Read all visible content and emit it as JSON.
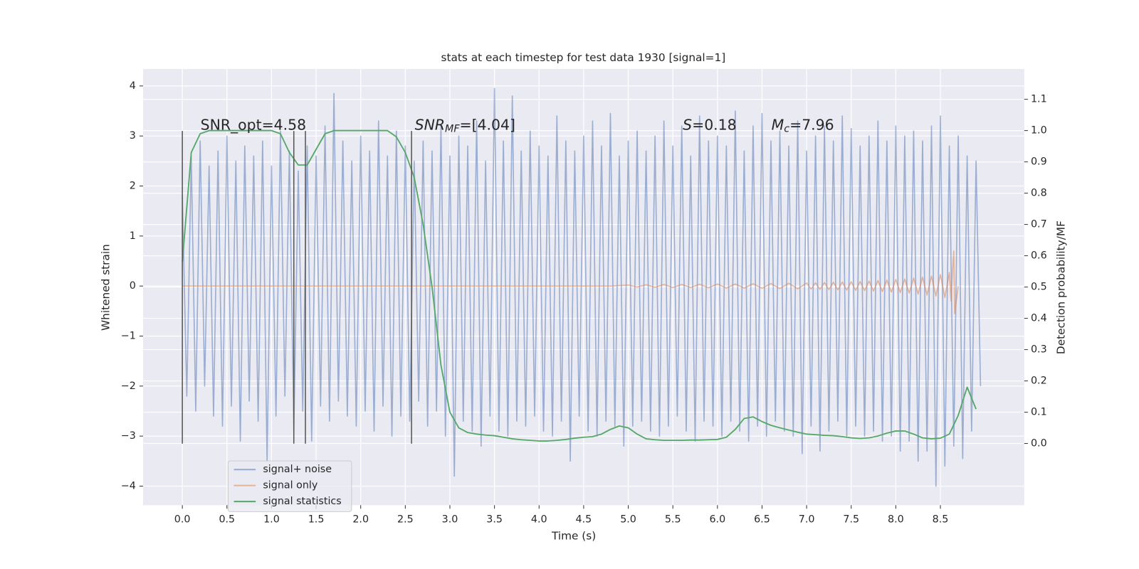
{
  "chart_data": {
    "type": "line",
    "title": "stats at each timestep for test data 1930 [signal=1]",
    "xlabel": "Time (s)",
    "ylabel": "Whitened strain",
    "y2label": "Detection probability/MF",
    "xlim": [
      -0.44,
      9.44
    ],
    "ylim": [
      -4.38,
      4.34
    ],
    "y2lim": [
      -0.197,
      1.197
    ],
    "xticks": [
      {
        "value": 0,
        "label": "0.0"
      },
      0.5,
      {
        "value": 1,
        "label": "1.0"
      },
      1.5,
      {
        "value": 2,
        "label": "2.0"
      },
      2.5,
      {
        "value": 3,
        "label": "3.0"
      },
      3.5,
      {
        "value": 4,
        "label": "4.0"
      },
      4.5,
      {
        "value": 5,
        "label": "5.0"
      },
      5.5,
      {
        "value": 6,
        "label": "6.0"
      },
      6.5,
      {
        "value": 7,
        "label": "7.0"
      },
      7.5,
      {
        "value": 8,
        "label": "8.0"
      },
      8.5
    ],
    "yticks": [
      {
        "value": -4,
        "label": "−4"
      },
      {
        "value": -3,
        "label": "−3"
      },
      {
        "value": -2,
        "label": "−2"
      },
      {
        "value": -1,
        "label": "−1"
      },
      0,
      1,
      2,
      3,
      4
    ],
    "y2ticks": [
      {
        "value": 0,
        "label": "0.0"
      },
      0.1,
      0.2,
      0.3,
      0.4,
      0.5,
      0.6,
      0.7,
      0.8,
      0.9,
      {
        "value": 1,
        "label": "1.0"
      },
      1.1
    ],
    "grid": true,
    "legend": "lower left",
    "series": [
      {
        "name": "signal+ noise",
        "color": "#4c72b0",
        "x": [
          0,
          0.05,
          0.1,
          0.15,
          0.2,
          0.25,
          0.3,
          0.35,
          0.4,
          0.45,
          0.5,
          0.55,
          0.6,
          0.65,
          0.7,
          0.75,
          0.8,
          0.85,
          0.9,
          0.95,
          1,
          1.05,
          1.1,
          1.15,
          1.2,
          1.25,
          1.3,
          1.35,
          1.4,
          1.45,
          1.5,
          1.55,
          1.6,
          1.65,
          1.7,
          1.75,
          1.8,
          1.85,
          1.9,
          1.95,
          2,
          2.05,
          2.1,
          2.15,
          2.2,
          2.25,
          2.3,
          2.35,
          2.4,
          2.45,
          2.5,
          2.55,
          2.6,
          2.65,
          2.7,
          2.75,
          2.8,
          2.85,
          2.9,
          2.95,
          3,
          3.05,
          3.1,
          3.15,
          3.2,
          3.25,
          3.3,
          3.35,
          3.4,
          3.45,
          3.5,
          3.55,
          3.6,
          3.65,
          3.7,
          3.75,
          3.8,
          3.85,
          3.9,
          3.95,
          4,
          4.05,
          4.1,
          4.15,
          4.2,
          4.25,
          4.3,
          4.35,
          4.4,
          4.45,
          4.5,
          4.55,
          4.6,
          4.65,
          4.7,
          4.75,
          4.8,
          4.85,
          4.9,
          4.95,
          5,
          5.05,
          5.1,
          5.15,
          5.2,
          5.25,
          5.3,
          5.35,
          5.4,
          5.45,
          5.5,
          5.55,
          5.6,
          5.65,
          5.7,
          5.75,
          5.8,
          5.85,
          5.9,
          5.95,
          6,
          6.05,
          6.1,
          6.15,
          6.2,
          6.25,
          6.3,
          6.35,
          6.4,
          6.45,
          6.5,
          6.55,
          6.6,
          6.65,
          6.7,
          6.75,
          6.8,
          6.85,
          6.9,
          6.95,
          7,
          7.05,
          7.1,
          7.15,
          7.2,
          7.25,
          7.3,
          7.35,
          7.4,
          7.45,
          7.5,
          7.55,
          7.6,
          7.65,
          7.7,
          7.75,
          7.8,
          7.85,
          7.9,
          7.95,
          8,
          8.05,
          8.1,
          8.15,
          8.2,
          8.25,
          8.3,
          8.35,
          8.4,
          8.45,
          8.5,
          8.55,
          8.6,
          8.65,
          8.7,
          8.75,
          8.8,
          8.85,
          8.9,
          8.95
        ],
        "values": [
          1.8,
          -2.2,
          2.6,
          -2.5,
          2.9,
          -2.0,
          2.4,
          -2.6,
          2.7,
          -2.8,
          3.0,
          -2.4,
          2.5,
          -3.1,
          2.8,
          -2.3,
          2.6,
          -2.7,
          2.9,
          -3.5,
          2.4,
          -2.6,
          3.1,
          -2.2,
          2.7,
          -2.9,
          2.3,
          -2.5,
          2.8,
          -3.1,
          2.6,
          -2.4,
          3.2,
          -2.7,
          3.85,
          -2.3,
          2.9,
          -2.6,
          2.5,
          -2.8,
          3.0,
          -2.5,
          2.7,
          -2.9,
          3.3,
          -2.4,
          2.6,
          -3.0,
          3.1,
          -2.6,
          2.8,
          -2.7,
          2.5,
          -2.3,
          2.9,
          -2.8,
          2.7,
          -2.5,
          3.2,
          -3.0,
          2.6,
          -3.8,
          3.0,
          -2.7,
          2.8,
          -2.9,
          3.3,
          -3.2,
          2.5,
          -2.6,
          3.95,
          -2.9,
          2.9,
          -3.0,
          3.8,
          -2.7,
          2.7,
          -2.8,
          3.1,
          -2.6,
          2.8,
          -2.9,
          2.6,
          -3.0,
          3.4,
          -2.7,
          2.9,
          -3.5,
          2.7,
          -2.6,
          3.0,
          -2.9,
          3.3,
          -3.0,
          2.8,
          -2.7,
          3.45,
          -2.8,
          2.6,
          -3.2,
          2.9,
          -2.8,
          3.1,
          -2.7,
          2.7,
          -2.9,
          3.0,
          -3.0,
          3.3,
          -2.8,
          2.8,
          -2.6,
          3.2,
          -2.9,
          2.6,
          -3.1,
          3.4,
          -2.7,
          2.9,
          -2.8,
          3.0,
          -3.0,
          2.8,
          -2.7,
          3.5,
          -2.9,
          2.7,
          -3.1,
          3.2,
          -2.8,
          3.45,
          -3.0,
          2.9,
          -2.7,
          3.1,
          -2.9,
          2.8,
          -3.0,
          3.3,
          -3.35,
          2.7,
          -2.8,
          3.0,
          -3.3,
          3.2,
          -2.9,
          2.9,
          -2.7,
          3.4,
          -3.0,
          3.15,
          -2.8,
          2.8,
          -3.0,
          3.0,
          -2.9,
          3.3,
          -3.1,
          2.9,
          -3.0,
          3.2,
          -3.3,
          3.0,
          -3.1,
          3.1,
          -3.5,
          2.9,
          -3.3,
          3.2,
          -4.0,
          3.4,
          -3.6,
          2.8,
          -3.2,
          3.0,
          -3.45,
          2.6,
          -2.9,
          2.5,
          -2.0
        ]
      },
      {
        "name": "signal only",
        "color": "#dd8452",
        "x": [
          0,
          4.8,
          5,
          5.1,
          5.2,
          5.3,
          5.4,
          5.5,
          5.6,
          5.7,
          5.8,
          5.9,
          6,
          6.1,
          6.2,
          6.3,
          6.4,
          6.5,
          6.6,
          6.7,
          6.8,
          6.9,
          7,
          7.05,
          7.1,
          7.15,
          7.2,
          7.25,
          7.3,
          7.35,
          7.4,
          7.45,
          7.5,
          7.55,
          7.6,
          7.65,
          7.7,
          7.75,
          7.8,
          7.85,
          7.9,
          7.95,
          8,
          8.05,
          8.1,
          8.15,
          8.2,
          8.25,
          8.3,
          8.35,
          8.4,
          8.45,
          8.5,
          8.55,
          8.6,
          8.62,
          8.64,
          8.65,
          8.66,
          8.7
        ],
        "values": [
          0,
          0,
          0.02,
          -0.02,
          0.025,
          -0.025,
          0.03,
          -0.03,
          0.03,
          -0.03,
          0.035,
          -0.035,
          0.04,
          -0.04,
          0.04,
          -0.04,
          0.045,
          -0.045,
          0.05,
          -0.05,
          0.055,
          -0.055,
          0.06,
          -0.06,
          0.065,
          -0.065,
          0.07,
          -0.07,
          0.075,
          -0.075,
          0.08,
          -0.08,
          0.085,
          -0.085,
          0.09,
          -0.09,
          0.1,
          -0.1,
          0.11,
          -0.11,
          0.12,
          -0.12,
          0.13,
          -0.13,
          0.14,
          -0.14,
          0.16,
          -0.16,
          0.18,
          -0.18,
          0.2,
          -0.2,
          0.23,
          -0.23,
          0.27,
          -0.3,
          0.45,
          0.7,
          -0.55,
          0
        ]
      },
      {
        "name": "signal statistics",
        "color": "#55a868",
        "axis": "y2",
        "x": [
          0,
          0.1,
          0.2,
          0.3,
          0.4,
          0.5,
          0.6,
          0.7,
          0.8,
          0.9,
          1,
          1.1,
          1.2,
          1.3,
          1.4,
          1.5,
          1.6,
          1.7,
          1.8,
          1.9,
          2,
          2.1,
          2.2,
          2.3,
          2.4,
          2.5,
          2.6,
          2.7,
          2.8,
          2.9,
          3,
          3.1,
          3.2,
          3.3,
          3.4,
          3.5,
          3.6,
          3.7,
          3.8,
          3.9,
          4,
          4.1,
          4.2,
          4.3,
          4.4,
          4.5,
          4.6,
          4.7,
          4.8,
          4.9,
          5,
          5.1,
          5.2,
          5.3,
          5.4,
          5.5,
          5.6,
          5.7,
          5.8,
          5.9,
          6,
          6.1,
          6.2,
          6.3,
          6.4,
          6.5,
          6.6,
          6.7,
          6.8,
          6.9,
          7,
          7.1,
          7.2,
          7.3,
          7.4,
          7.5,
          7.6,
          7.7,
          7.8,
          7.9,
          8,
          8.1,
          8.2,
          8.3,
          8.4,
          8.5,
          8.6,
          8.7,
          8.8,
          8.9
        ],
        "values": [
          0.58,
          0.93,
          0.99,
          1.0,
          1.0,
          1.0,
          1.0,
          1.0,
          1.0,
          1.0,
          1.0,
          0.99,
          0.93,
          0.89,
          0.89,
          0.94,
          0.99,
          1.0,
          1.0,
          1.0,
          1.0,
          1.0,
          1.0,
          1.0,
          0.98,
          0.93,
          0.85,
          0.7,
          0.5,
          0.25,
          0.1,
          0.05,
          0.035,
          0.03,
          0.027,
          0.025,
          0.02,
          0.015,
          0.012,
          0.01,
          0.008,
          0.008,
          0.01,
          0.013,
          0.017,
          0.02,
          0.022,
          0.03,
          0.045,
          0.056,
          0.05,
          0.03,
          0.015,
          0.012,
          0.01,
          0.01,
          0.01,
          0.011,
          0.011,
          0.012,
          0.013,
          0.02,
          0.045,
          0.08,
          0.085,
          0.07,
          0.058,
          0.05,
          0.043,
          0.036,
          0.03,
          0.028,
          0.026,
          0.025,
          0.022,
          0.018,
          0.016,
          0.018,
          0.024,
          0.033,
          0.04,
          0.04,
          0.03,
          0.018,
          0.015,
          0.017,
          0.03,
          0.09,
          0.18,
          0.11
        ]
      }
    ],
    "vlines": {
      "x": [
        0,
        1.25,
        1.38,
        2.57
      ],
      "ymin": -3.15,
      "ymax": 3.1,
      "color": "#555555"
    },
    "annotations": [
      [
        {
          "text": "SNR_opt=4.58"
        }
      ],
      [
        {
          "text": "SNR",
          "italic": true
        },
        {
          "text": "MF",
          "italic": true,
          "sub": true
        },
        {
          "text": "=[4.04]"
        }
      ],
      [
        {
          "text": "S",
          "italic": true
        },
        {
          "text": "=0.18"
        }
      ],
      [
        {
          "text": "M",
          "italic": true
        },
        {
          "text": "c",
          "italic": true,
          "sub": true
        },
        {
          "text": "=7.96"
        }
      ]
    ]
  }
}
